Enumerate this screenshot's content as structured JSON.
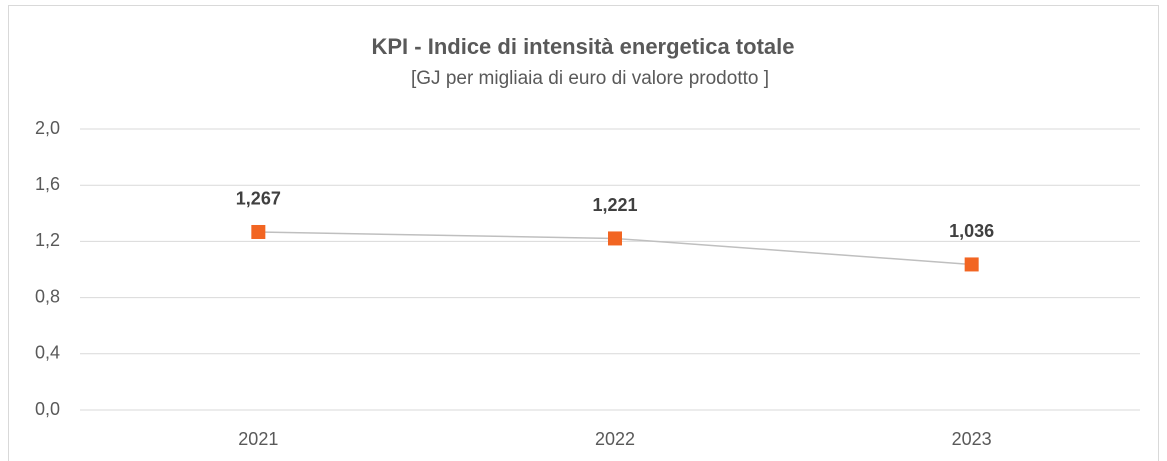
{
  "chart_data": {
    "type": "line",
    "title": "KPI - Indice di intensità energetica totale",
    "subtitle": "[GJ per migliaia di euro di valore prodotto ]",
    "categories": [
      "2021",
      "2022",
      "2023"
    ],
    "values": [
      1.267,
      1.221,
      1.036
    ],
    "value_labels": [
      "1,267",
      "1,221",
      "1,036"
    ],
    "color": "#f26522",
    "line_color": "#bfbfbf",
    "ylim": [
      0,
      2
    ],
    "yticks": [
      {
        "value": 0,
        "label": "0,0"
      },
      {
        "value": 0.4,
        "label": "0,4"
      },
      {
        "value": 0.8,
        "label": "0,8"
      },
      {
        "value": 1.2,
        "label": "1,2"
      },
      {
        "value": 1.6,
        "label": "1,6"
      },
      {
        "value": 2,
        "label": "2,0"
      }
    ],
    "grid": true
  }
}
